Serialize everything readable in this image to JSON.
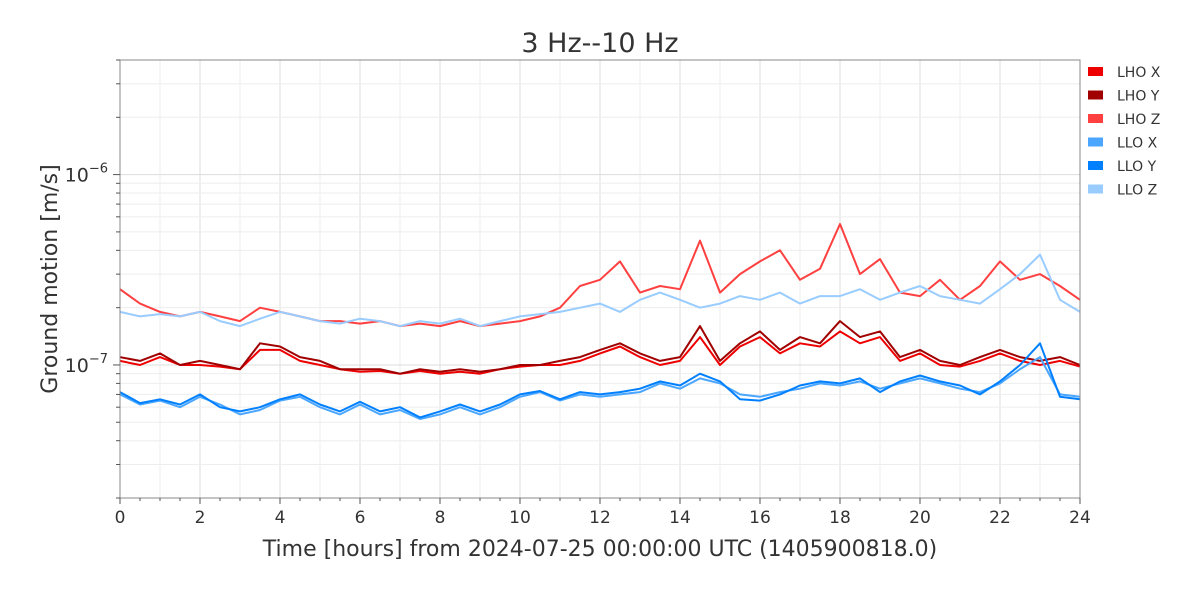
{
  "chart_data": {
    "type": "line",
    "title": "3 Hz--10 Hz",
    "xlabel": "Time [hours] from 2024-07-25 00:00:00 UTC (1405900818.0)",
    "ylabel": "Ground motion [m/s]",
    "xlim": [
      0,
      24
    ],
    "ylim": [
      2e-08,
      4e-06
    ],
    "yscale": "log",
    "grid": true,
    "legend_position": "right",
    "x_ticks": [
      "0",
      "2",
      "4",
      "6",
      "8",
      "10",
      "12",
      "14",
      "16",
      "18",
      "20",
      "22",
      "24"
    ],
    "y_ticks": [
      {
        "base": "10",
        "exp": "−6",
        "value": 1e-06
      },
      {
        "base": "10",
        "exp": "−7",
        "value": 1e-07
      }
    ],
    "value_multiplier": 1e-07,
    "x_step_hours": 0.5,
    "series": [
      {
        "name": "LHO X",
        "color": "#ee0000",
        "values": [
          1.05,
          1.0,
          1.1,
          1.0,
          1.0,
          0.98,
          0.95,
          1.2,
          1.2,
          1.05,
          1.0,
          0.95,
          0.92,
          0.93,
          0.9,
          0.93,
          0.9,
          0.92,
          0.9,
          0.95,
          0.98,
          1.0,
          1.0,
          1.05,
          1.15,
          1.25,
          1.1,
          1.0,
          1.05,
          1.4,
          1.0,
          1.25,
          1.4,
          1.15,
          1.3,
          1.25,
          1.5,
          1.3,
          1.4,
          1.05,
          1.15,
          1.0,
          0.98,
          1.05,
          1.15,
          1.05,
          1.0,
          1.05,
          0.98
        ]
      },
      {
        "name": "LHO Y",
        "color": "#a00000",
        "values": [
          1.1,
          1.05,
          1.15,
          1.0,
          1.05,
          1.0,
          0.95,
          1.3,
          1.25,
          1.1,
          1.05,
          0.95,
          0.95,
          0.95,
          0.9,
          0.95,
          0.92,
          0.95,
          0.92,
          0.95,
          1.0,
          1.0,
          1.05,
          1.1,
          1.2,
          1.3,
          1.15,
          1.05,
          1.1,
          1.6,
          1.05,
          1.3,
          1.5,
          1.2,
          1.4,
          1.3,
          1.7,
          1.4,
          1.5,
          1.1,
          1.2,
          1.05,
          1.0,
          1.1,
          1.2,
          1.1,
          1.05,
          1.1,
          1.0
        ]
      },
      {
        "name": "LHO Z",
        "color": "#ff4040",
        "values": [
          2.5,
          2.1,
          1.9,
          1.8,
          1.9,
          1.8,
          1.7,
          2.0,
          1.9,
          1.8,
          1.7,
          1.7,
          1.65,
          1.7,
          1.6,
          1.65,
          1.6,
          1.7,
          1.6,
          1.65,
          1.7,
          1.8,
          2.0,
          2.6,
          2.8,
          3.5,
          2.4,
          2.6,
          2.5,
          4.5,
          2.4,
          3.0,
          3.5,
          4.0,
          2.8,
          3.2,
          5.5,
          3.0,
          3.6,
          2.4,
          2.3,
          2.8,
          2.2,
          2.6,
          3.5,
          2.8,
          3.0,
          2.6,
          2.2
        ]
      },
      {
        "name": "LLO X",
        "color": "#4ba6ff",
        "values": [
          0.7,
          0.62,
          0.65,
          0.6,
          0.68,
          0.62,
          0.55,
          0.58,
          0.65,
          0.68,
          0.6,
          0.55,
          0.62,
          0.55,
          0.58,
          0.52,
          0.55,
          0.6,
          0.55,
          0.6,
          0.68,
          0.72,
          0.65,
          0.7,
          0.68,
          0.7,
          0.72,
          0.8,
          0.75,
          0.85,
          0.8,
          0.7,
          0.68,
          0.72,
          0.75,
          0.8,
          0.78,
          0.82,
          0.75,
          0.8,
          0.85,
          0.8,
          0.75,
          0.72,
          0.8,
          0.95,
          1.1,
          0.7,
          0.68
        ]
      },
      {
        "name": "LLO Y",
        "color": "#0080ff",
        "values": [
          0.72,
          0.63,
          0.66,
          0.62,
          0.7,
          0.6,
          0.57,
          0.6,
          0.66,
          0.7,
          0.62,
          0.57,
          0.64,
          0.57,
          0.6,
          0.53,
          0.57,
          0.62,
          0.57,
          0.62,
          0.7,
          0.73,
          0.66,
          0.72,
          0.7,
          0.72,
          0.75,
          0.82,
          0.78,
          0.9,
          0.82,
          0.66,
          0.65,
          0.7,
          0.78,
          0.82,
          0.8,
          0.85,
          0.72,
          0.82,
          0.88,
          0.82,
          0.78,
          0.7,
          0.82,
          1.0,
          1.3,
          0.68,
          0.66
        ]
      },
      {
        "name": "LLO Z",
        "color": "#99ccff",
        "values": [
          1.9,
          1.8,
          1.85,
          1.8,
          1.9,
          1.7,
          1.6,
          1.75,
          1.9,
          1.8,
          1.7,
          1.65,
          1.75,
          1.7,
          1.6,
          1.7,
          1.65,
          1.75,
          1.6,
          1.7,
          1.8,
          1.85,
          1.9,
          2.0,
          2.1,
          1.9,
          2.2,
          2.4,
          2.2,
          2.0,
          2.1,
          2.3,
          2.2,
          2.4,
          2.1,
          2.3,
          2.3,
          2.5,
          2.2,
          2.4,
          2.6,
          2.3,
          2.2,
          2.1,
          2.5,
          3.0,
          3.8,
          2.2,
          1.9
        ]
      }
    ]
  }
}
